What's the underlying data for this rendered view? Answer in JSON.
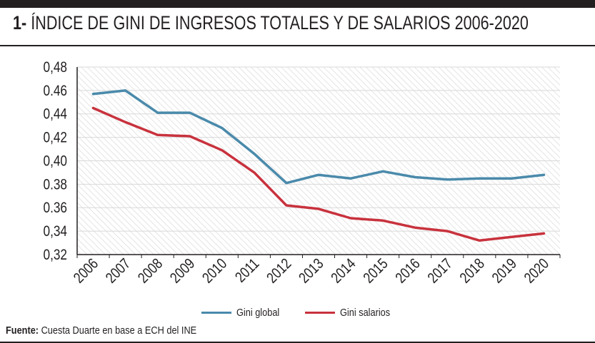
{
  "header": {
    "number": "1-",
    "title": "ÍNDICE DE GINI DE INGRESOS TOTALES Y DE SALARIOS 2006-2020"
  },
  "footer": {
    "source_label": "Fuente:",
    "source_text": "Cuesta Duarte en base a ECH del INE"
  },
  "colors": {
    "series_global": "#4a8aab",
    "series_salarios": "#c8323d",
    "grid": "#d8d8d8",
    "hatch": "#e4e4e4",
    "axis": "#231f20"
  },
  "chart_data": {
    "type": "line",
    "title": "ÍNDICE DE GINI DE INGRESOS TOTALES Y DE SALARIOS 2006-2020",
    "xlabel": "",
    "ylabel": "",
    "categories": [
      "2006",
      "2007",
      "2008",
      "2009",
      "2010",
      "2011",
      "2012",
      "2013",
      "2014",
      "2015",
      "2016",
      "2017",
      "2018",
      "2019",
      "2020"
    ],
    "ylim": [
      0.32,
      0.48
    ],
    "yticks": [
      0.32,
      0.34,
      0.36,
      0.38,
      0.4,
      0.42,
      0.44,
      0.46,
      0.48
    ],
    "ytick_labels": [
      "0,32",
      "0,34",
      "0.36",
      "0.38",
      "0,40",
      "0,42",
      "0,44",
      "0.46",
      "0,48"
    ],
    "grid": true,
    "legend_position": "bottom-center",
    "series": [
      {
        "name": "Gini global",
        "color": "#4a8aab",
        "values": [
          0.457,
          0.46,
          0.441,
          0.441,
          0.428,
          0.406,
          0.381,
          0.388,
          0.385,
          0.391,
          0.386,
          0.384,
          0.385,
          0.385,
          0.388
        ]
      },
      {
        "name": "Gini salarios",
        "color": "#c8323d",
        "values": [
          0.445,
          0.433,
          0.422,
          0.421,
          0.409,
          0.39,
          0.362,
          0.359,
          0.351,
          0.349,
          0.343,
          0.34,
          0.332,
          0.335,
          0.338
        ]
      }
    ]
  }
}
